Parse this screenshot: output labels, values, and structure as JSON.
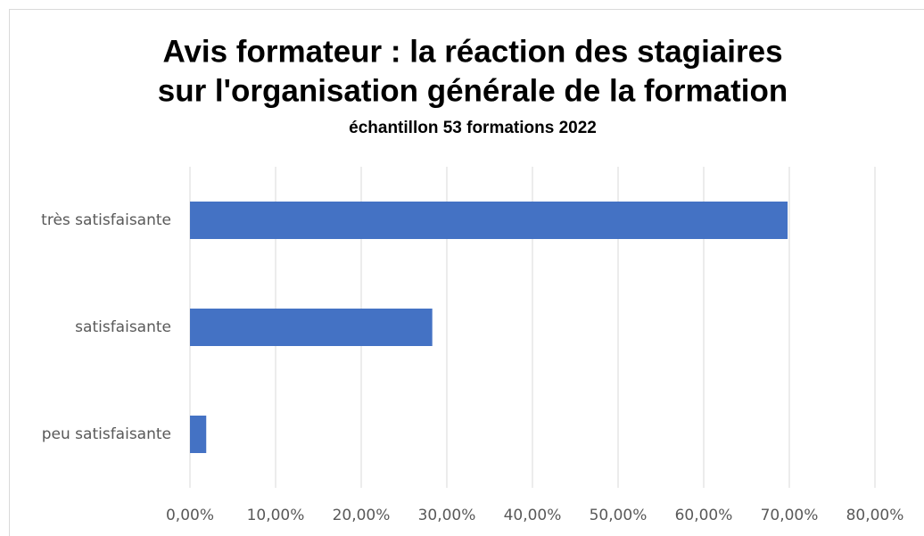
{
  "chart_data": {
    "type": "barh",
    "title": [
      "Avis formateur : la  réaction des stagiaires",
      "sur l'organisation générale de la formation"
    ],
    "subtitle": "échantillon 53 formations 2022",
    "categories": [
      "très satisfaisante",
      "satisfaisante",
      "peu satisfaisante"
    ],
    "values": [
      69.8,
      28.3,
      1.9
    ],
    "color": "#4472c4",
    "xlim": [
      0,
      80
    ],
    "xticks": [
      {
        "value": 0,
        "label": "0,00%"
      },
      {
        "value": 10,
        "label": "10,00%"
      },
      {
        "value": 20,
        "label": "20,00%"
      },
      {
        "value": 30,
        "label": "30,00%"
      },
      {
        "value": 40,
        "label": "40,00%"
      },
      {
        "value": 50,
        "label": "50,00%"
      },
      {
        "value": 60,
        "label": "60,00%"
      },
      {
        "value": 70,
        "label": "70,00%"
      },
      {
        "value": 80,
        "label": "80,00%"
      }
    ],
    "grid": true
  }
}
